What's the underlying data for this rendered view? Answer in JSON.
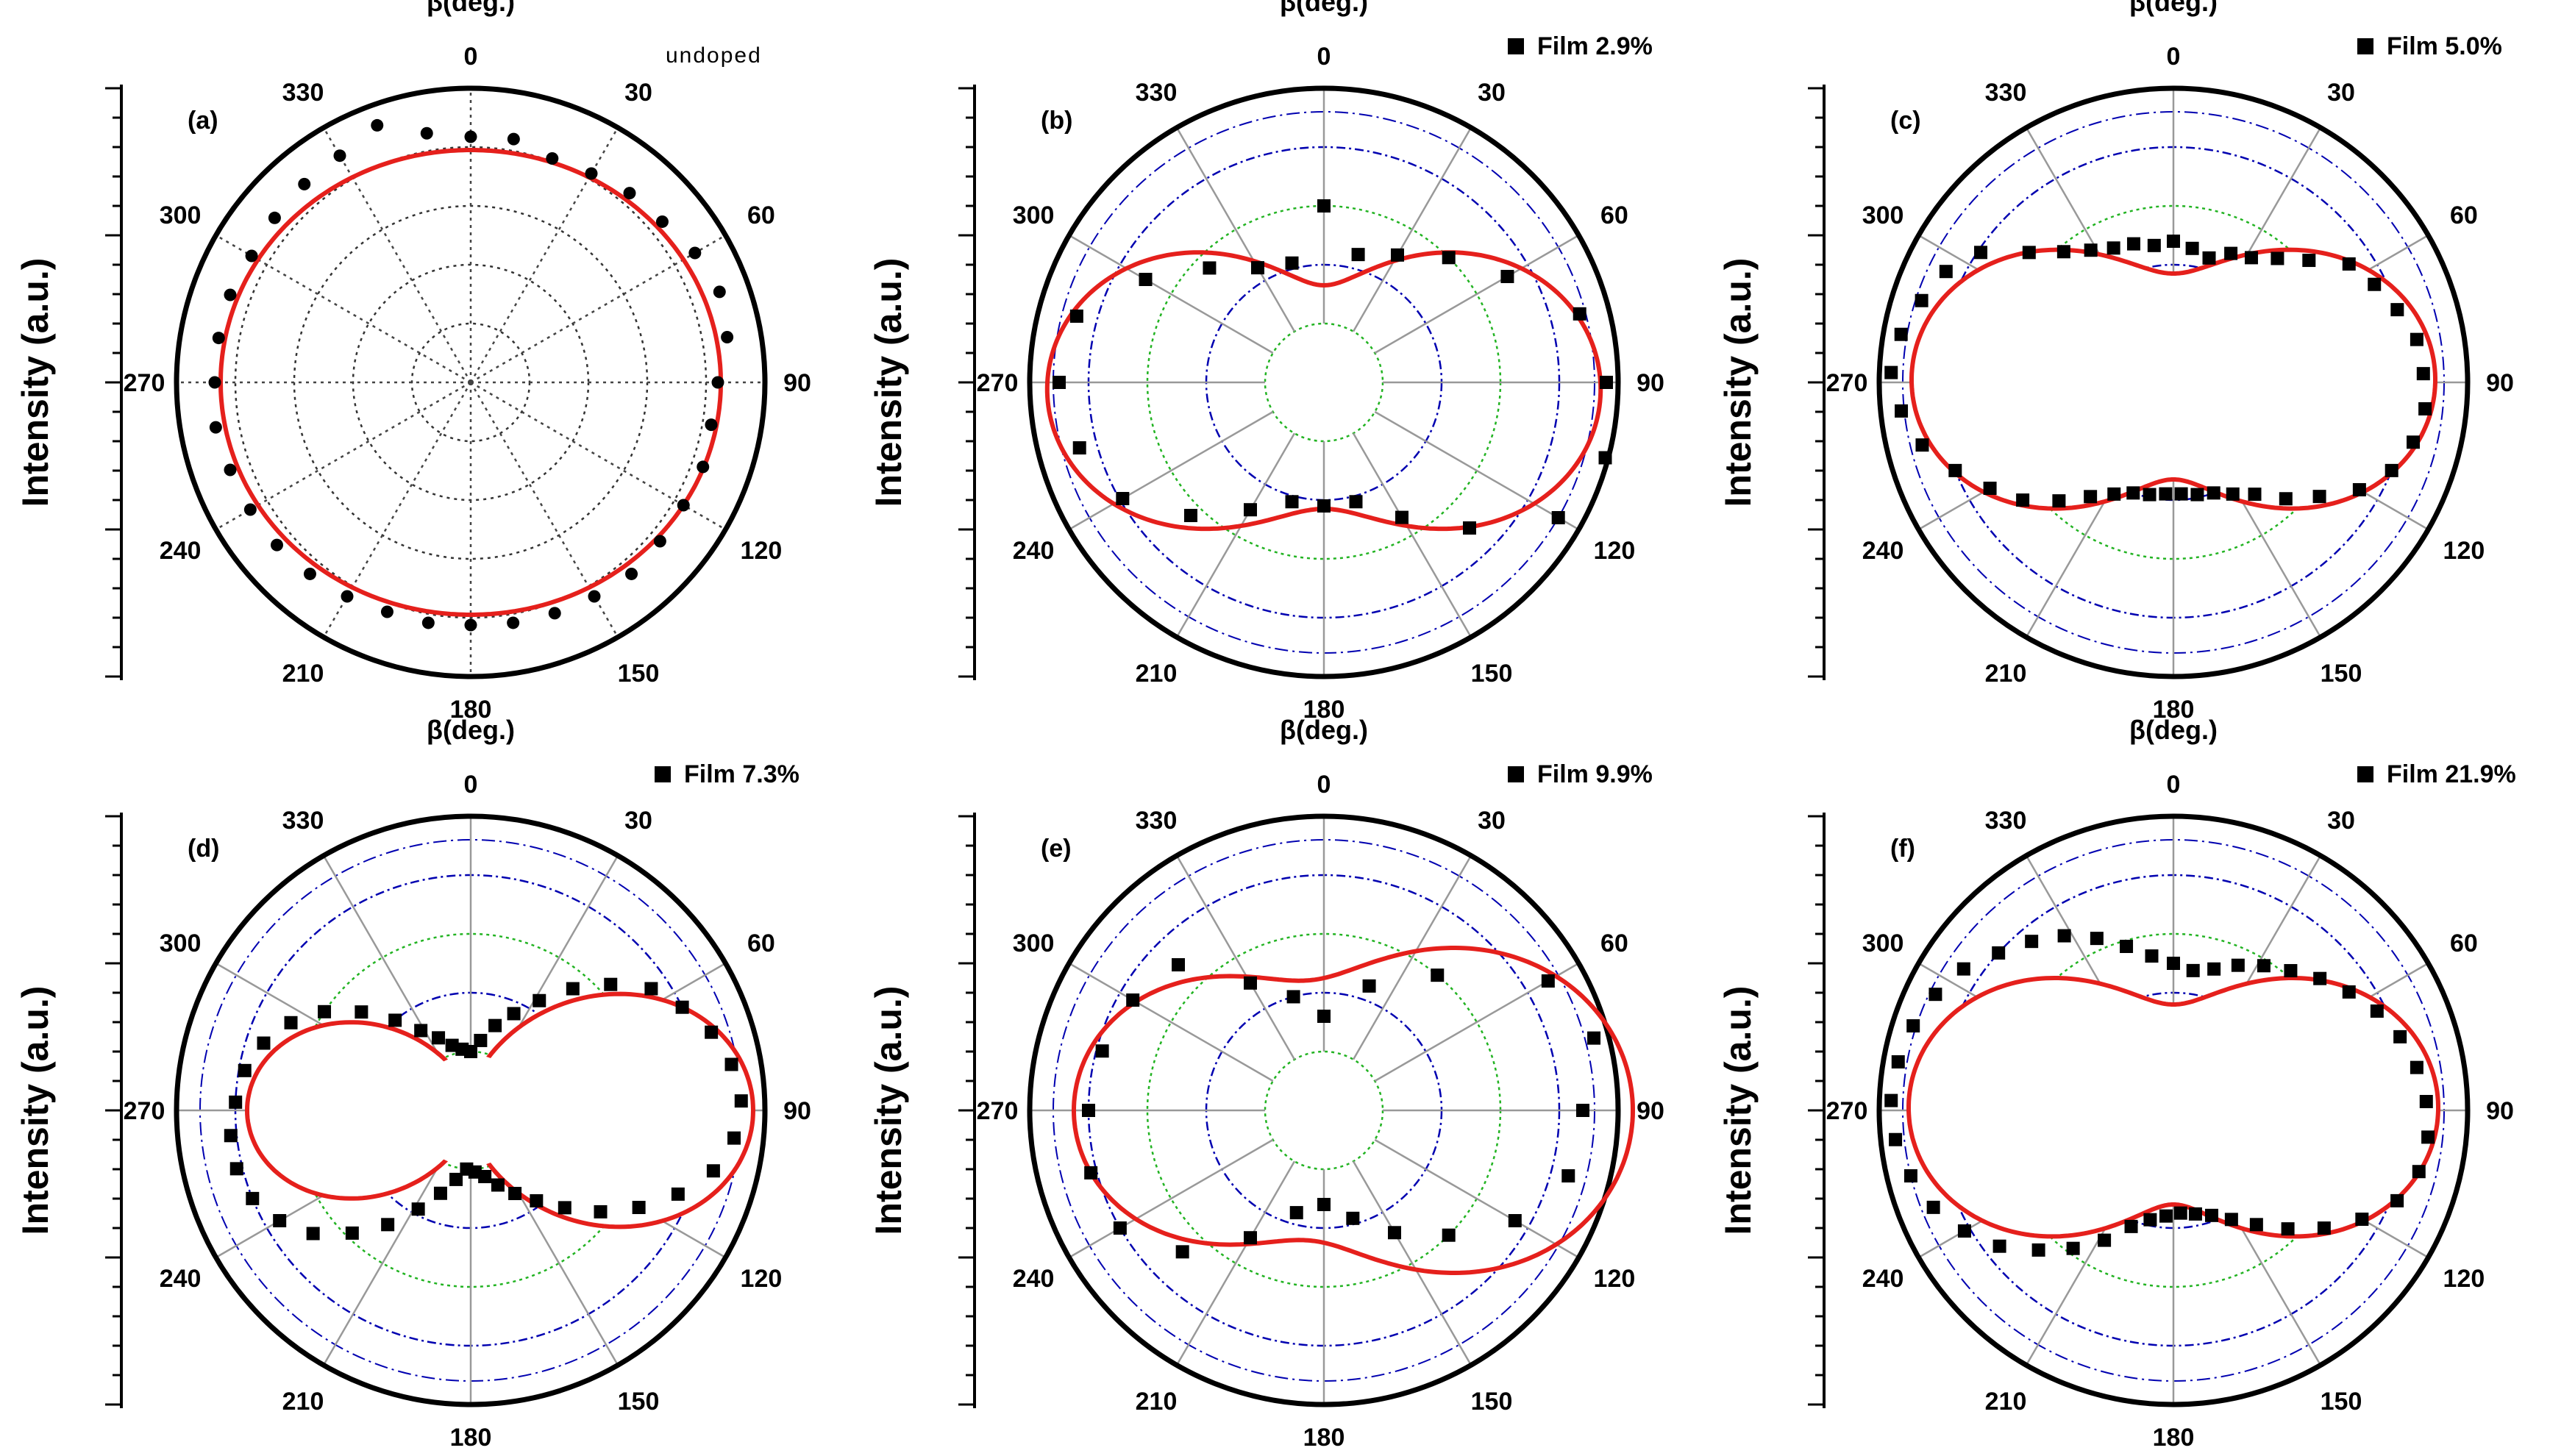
{
  "chart_data": [
    {
      "type": "polar",
      "panel_label": "(a)",
      "legend": "undoped",
      "legend_marker": "none",
      "xlabel": "β(deg.)",
      "ylabel": "Intensity (a.u.)",
      "angle_ticks": [
        "0",
        "30",
        "60",
        "90",
        "120",
        "150",
        "180",
        "210",
        "240",
        "270",
        "300",
        "330"
      ],
      "grid_style": "gray",
      "marker": "circle",
      "fit_fill": "transparent",
      "radial_range": [
        0,
        1
      ],
      "fit": {
        "r0": 0.82,
        "a": -0.03,
        "b": 0.0,
        "phase": 0
      },
      "scatter": [
        [
          0,
          0.835
        ],
        [
          10,
          0.84
        ],
        [
          20,
          0.81
        ],
        [
          30,
          0.82
        ],
        [
          40,
          0.84
        ],
        [
          50,
          0.85
        ],
        [
          60,
          0.88
        ],
        [
          70,
          0.9
        ],
        [
          80,
          0.885
        ],
        [
          90,
          0.84
        ],
        [
          100,
          0.83
        ],
        [
          110,
          0.84
        ],
        [
          120,
          0.835
        ],
        [
          130,
          0.84
        ],
        [
          140,
          0.85
        ],
        [
          150,
          0.84
        ],
        [
          160,
          0.835
        ],
        [
          170,
          0.83
        ],
        [
          180,
          0.825
        ],
        [
          190,
          0.83
        ],
        [
          200,
          0.83
        ],
        [
          210,
          0.84
        ],
        [
          220,
          0.85
        ],
        [
          230,
          0.86
        ],
        [
          240,
          0.865
        ],
        [
          250,
          0.87
        ],
        [
          260,
          0.88
        ],
        [
          270,
          0.87
        ],
        [
          280,
          0.87
        ],
        [
          290,
          0.87
        ],
        [
          300,
          0.86
        ],
        [
          310,
          0.87
        ],
        [
          320,
          0.88
        ],
        [
          330,
          0.89
        ],
        [
          340,
          0.93
        ],
        [
          350,
          0.86
        ]
      ]
    },
    {
      "type": "polar",
      "panel_label": "(b)",
      "legend": "Film 2.9%",
      "legend_marker": "square",
      "xlabel": "β(deg.)",
      "ylabel": "Intensity (a.u.)",
      "angle_ticks": [
        "0",
        "30",
        "60",
        "90",
        "120",
        "150",
        "180",
        "210",
        "240",
        "270",
        "300",
        "330"
      ],
      "grid_style": "color",
      "marker": "square",
      "fit_fill": "transparent",
      "radial_range": [
        0,
        1
      ],
      "fit": {
        "r0": 0.66,
        "a": -0.28,
        "b": -0.05,
        "phase": 0
      },
      "scatter": [
        [
          0,
          0.6
        ],
        [
          15,
          0.45
        ],
        [
          30,
          0.5
        ],
        [
          45,
          0.6
        ],
        [
          60,
          0.72
        ],
        [
          75,
          0.9
        ],
        [
          90,
          0.96
        ],
        [
          105,
          0.99
        ],
        [
          120,
          0.92
        ],
        [
          135,
          0.7
        ],
        [
          150,
          0.53
        ],
        [
          165,
          0.42
        ],
        [
          180,
          0.42
        ],
        [
          195,
          0.42
        ],
        [
          210,
          0.5
        ],
        [
          225,
          0.64
        ],
        [
          240,
          0.79
        ],
        [
          255,
          0.86
        ],
        [
          270,
          0.9
        ],
        [
          285,
          0.87
        ],
        [
          300,
          0.7
        ],
        [
          315,
          0.55
        ],
        [
          330,
          0.45
        ],
        [
          345,
          0.42
        ]
      ]
    },
    {
      "type": "polar",
      "panel_label": "(c)",
      "legend": "Film 5.0%",
      "legend_marker": "square",
      "xlabel": "β(deg.)",
      "ylabel": "Intensity (a.u.)",
      "angle_ticks": [
        "0",
        "30",
        "60",
        "90",
        "120",
        "150",
        "180",
        "210",
        "240",
        "270",
        "300",
        "330"
      ],
      "grid_style": "color",
      "marker": "square",
      "fit_fill": "white",
      "radial_range": [
        0,
        1
      ],
      "fit": {
        "r0": 0.62,
        "a": -0.27,
        "b": 0.02,
        "phase": 0
      },
      "scatter": [
        [
          0,
          0.48
        ],
        [
          8,
          0.46
        ],
        [
          16,
          0.44
        ],
        [
          24,
          0.48
        ],
        [
          32,
          0.5
        ],
        [
          40,
          0.55
        ],
        [
          48,
          0.62
        ],
        [
          56,
          0.72
        ],
        [
          64,
          0.76
        ],
        [
          72,
          0.8
        ],
        [
          80,
          0.84
        ],
        [
          88,
          0.85
        ],
        [
          96,
          0.86
        ],
        [
          104,
          0.84
        ],
        [
          112,
          0.8
        ],
        [
          120,
          0.73
        ],
        [
          128,
          0.63
        ],
        [
          136,
          0.55
        ],
        [
          144,
          0.47
        ],
        [
          152,
          0.43
        ],
        [
          160,
          0.4
        ],
        [
          168,
          0.39
        ],
        [
          176,
          0.38
        ],
        [
          184,
          0.38
        ],
        [
          192,
          0.39
        ],
        [
          200,
          0.4
        ],
        [
          208,
          0.43
        ],
        [
          216,
          0.48
        ],
        [
          224,
          0.56
        ],
        [
          232,
          0.65
        ],
        [
          240,
          0.72
        ],
        [
          248,
          0.8
        ],
        [
          256,
          0.88
        ],
        [
          264,
          0.93
        ],
        [
          272,
          0.96
        ],
        [
          280,
          0.94
        ],
        [
          288,
          0.9
        ],
        [
          296,
          0.86
        ],
        [
          304,
          0.79
        ],
        [
          312,
          0.66
        ],
        [
          320,
          0.58
        ],
        [
          328,
          0.53
        ],
        [
          336,
          0.5
        ],
        [
          344,
          0.49
        ],
        [
          352,
          0.47
        ]
      ]
    },
    {
      "type": "polar",
      "panel_label": "(d)",
      "legend": "Film 7.3%",
      "legend_marker": "square",
      "xlabel": "β(deg.)",
      "ylabel": "Intensity (a.u.)",
      "angle_ticks": [
        "0",
        "30",
        "60",
        "90",
        "120",
        "150",
        "180",
        "210",
        "240",
        "270",
        "300",
        "330"
      ],
      "grid_style": "color",
      "marker": "square",
      "fit_fill": "white",
      "radial_range": [
        0,
        1
      ],
      "fit": {
        "r0": 0.47,
        "a": -0.39,
        "b": 0.0,
        "phase": 0,
        "c": 0.1
      },
      "scatter": [
        [
          0,
          0.2
        ],
        [
          8,
          0.24
        ],
        [
          16,
          0.3
        ],
        [
          24,
          0.36
        ],
        [
          32,
          0.44
        ],
        [
          40,
          0.54
        ],
        [
          48,
          0.64
        ],
        [
          56,
          0.74
        ],
        [
          64,
          0.8
        ],
        [
          72,
          0.86
        ],
        [
          80,
          0.9
        ],
        [
          88,
          0.92
        ],
        [
          96,
          0.9
        ],
        [
          104,
          0.85
        ],
        [
          112,
          0.76
        ],
        [
          120,
          0.66
        ],
        [
          128,
          0.56
        ],
        [
          136,
          0.46
        ],
        [
          144,
          0.38
        ],
        [
          152,
          0.32
        ],
        [
          160,
          0.27
        ],
        [
          168,
          0.23
        ],
        [
          176,
          0.21
        ],
        [
          184,
          0.2
        ],
        [
          192,
          0.24
        ],
        [
          200,
          0.3
        ],
        [
          208,
          0.38
        ],
        [
          216,
          0.48
        ],
        [
          224,
          0.58
        ],
        [
          232,
          0.68
        ],
        [
          240,
          0.75
        ],
        [
          248,
          0.8
        ],
        [
          256,
          0.82
        ],
        [
          264,
          0.82
        ],
        [
          272,
          0.8
        ],
        [
          280,
          0.78
        ],
        [
          288,
          0.74
        ],
        [
          296,
          0.68
        ],
        [
          304,
          0.6
        ],
        [
          312,
          0.5
        ],
        [
          320,
          0.4
        ],
        [
          328,
          0.32
        ],
        [
          336,
          0.27
        ],
        [
          344,
          0.23
        ],
        [
          352,
          0.21
        ]
      ]
    },
    {
      "type": "polar",
      "panel_label": "(e)",
      "legend": "Film 9.9%",
      "legend_marker": "square",
      "xlabel": "β(deg.)",
      "ylabel": "Intensity (a.u.)",
      "angle_ticks": [
        "0",
        "30",
        "60",
        "90",
        "120",
        "150",
        "180",
        "210",
        "240",
        "270",
        "300",
        "330"
      ],
      "grid_style": "color",
      "marker": "square",
      "fit_fill": "transparent",
      "radial_range": [
        0,
        1
      ],
      "fit": {
        "r0": 0.7,
        "a": -0.25,
        "b": 0.0,
        "phase": 0,
        "c": 0.1
      },
      "scatter": [
        [
          0,
          0.32
        ],
        [
          20,
          0.45
        ],
        [
          40,
          0.6
        ],
        [
          60,
          0.88
        ],
        [
          75,
          0.95
        ],
        [
          90,
          0.88
        ],
        [
          105,
          0.86
        ],
        [
          120,
          0.75
        ],
        [
          135,
          0.6
        ],
        [
          150,
          0.48
        ],
        [
          165,
          0.38
        ],
        [
          180,
          0.32
        ],
        [
          195,
          0.36
        ],
        [
          210,
          0.5
        ],
        [
          225,
          0.68
        ],
        [
          240,
          0.8
        ],
        [
          255,
          0.82
        ],
        [
          270,
          0.8
        ],
        [
          285,
          0.78
        ],
        [
          300,
          0.75
        ],
        [
          315,
          0.7
        ],
        [
          330,
          0.5
        ],
        [
          345,
          0.4
        ]
      ]
    },
    {
      "type": "polar",
      "panel_label": "(f)",
      "legend": "Film 21.9%",
      "legend_marker": "square",
      "xlabel": "β(deg.)",
      "ylabel": "Intensity (a.u.)",
      "angle_ticks": [
        "0",
        "30",
        "60",
        "90",
        "120",
        "150",
        "180",
        "210",
        "240",
        "270",
        "300",
        "330"
      ],
      "grid_style": "color",
      "marker": "square",
      "fit_fill": "white",
      "radial_range": [
        0,
        1
      ],
      "fit": {
        "r0": 0.62,
        "a": -0.28,
        "b": 0.02,
        "phase": 0
      },
      "scatter": [
        [
          0,
          0.5
        ],
        [
          8,
          0.48
        ],
        [
          16,
          0.5
        ],
        [
          24,
          0.54
        ],
        [
          32,
          0.58
        ],
        [
          40,
          0.62
        ],
        [
          48,
          0.67
        ],
        [
          56,
          0.72
        ],
        [
          64,
          0.77
        ],
        [
          72,
          0.81
        ],
        [
          80,
          0.84
        ],
        [
          88,
          0.86
        ],
        [
          96,
          0.87
        ],
        [
          104,
          0.86
        ],
        [
          112,
          0.82
        ],
        [
          120,
          0.74
        ],
        [
          128,
          0.65
        ],
        [
          136,
          0.56
        ],
        [
          144,
          0.48
        ],
        [
          152,
          0.42
        ],
        [
          160,
          0.38
        ],
        [
          168,
          0.36
        ],
        [
          176,
          0.35
        ],
        [
          184,
          0.36
        ],
        [
          192,
          0.38
        ],
        [
          200,
          0.42
        ],
        [
          208,
          0.5
        ],
        [
          216,
          0.58
        ],
        [
          224,
          0.66
        ],
        [
          232,
          0.75
        ],
        [
          240,
          0.82
        ],
        [
          248,
          0.88
        ],
        [
          256,
          0.92
        ],
        [
          264,
          0.95
        ],
        [
          272,
          0.96
        ],
        [
          280,
          0.95
        ],
        [
          288,
          0.93
        ],
        [
          296,
          0.9
        ],
        [
          304,
          0.86
        ],
        [
          312,
          0.8
        ],
        [
          320,
          0.75
        ],
        [
          328,
          0.7
        ],
        [
          336,
          0.64
        ],
        [
          344,
          0.58
        ],
        [
          352,
          0.53
        ]
      ]
    }
  ]
}
